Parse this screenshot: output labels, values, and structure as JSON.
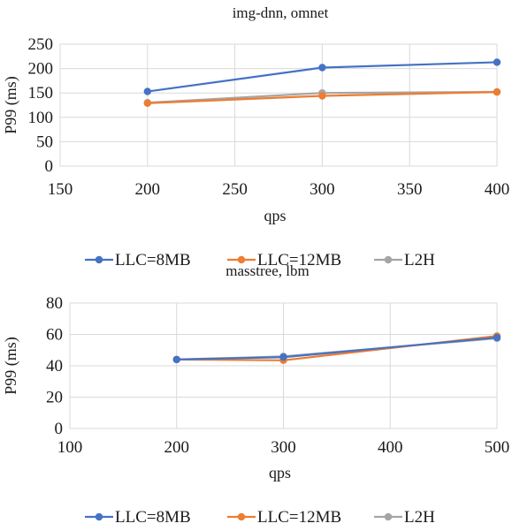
{
  "chart_data": [
    {
      "type": "line",
      "title": "img-dnn, omnet",
      "xlabel": "qps",
      "ylabel": "P99 (ms)",
      "xlim": [
        150,
        400
      ],
      "ylim": [
        0,
        250
      ],
      "xticks": [
        150,
        200,
        250,
        300,
        350,
        400
      ],
      "yticks": [
        0,
        50,
        100,
        150,
        200,
        250
      ],
      "grid": true,
      "legend_position": "bottom",
      "x": [
        200,
        300,
        400
      ],
      "series": [
        {
          "name": "LLC=8MB",
          "color": "#4472c4",
          "values": [
            153,
            202,
            213
          ]
        },
        {
          "name": "LLC=12MB",
          "color": "#ed7d31",
          "values": [
            129,
            144,
            152
          ]
        },
        {
          "name": "L2H",
          "color": "#a5a5a5",
          "values": [
            130,
            150,
            152
          ]
        }
      ]
    },
    {
      "type": "line",
      "title": "masstree, lbm",
      "xlabel": "qps",
      "ylabel": "P99 (ms)",
      "xlim": [
        100,
        500
      ],
      "ylim": [
        0,
        80
      ],
      "xticks": [
        100,
        200,
        300,
        400,
        500
      ],
      "yticks": [
        0,
        20,
        40,
        60,
        80
      ],
      "grid": true,
      "legend_position": "bottom",
      "x": [
        200,
        300,
        500
      ],
      "series": [
        {
          "name": "LLC=8MB",
          "color": "#4472c4",
          "values": [
            44,
            45.5,
            58
          ]
        },
        {
          "name": "LLC=12MB",
          "color": "#ed7d31",
          "values": [
            44,
            43.5,
            59
          ]
        },
        {
          "name": "L2H",
          "color": "#a5a5a5",
          "values": [
            44,
            46,
            57.5
          ]
        }
      ]
    }
  ]
}
